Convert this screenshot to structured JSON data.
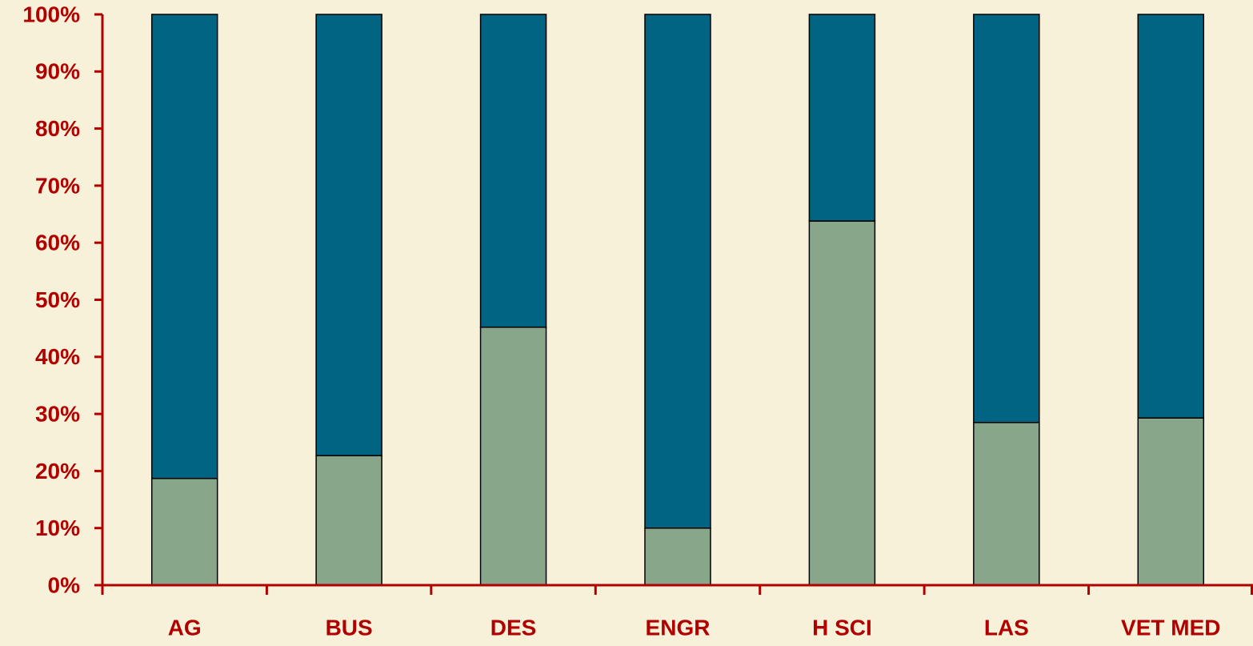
{
  "chart_data": {
    "type": "stacked_bar",
    "categories": [
      "AG",
      "BUS",
      "DES",
      "ENGR",
      "H SCI",
      "LAS",
      "VET MED"
    ],
    "series": [
      {
        "color": "#88a68a",
        "values": [
          18.7,
          22.7,
          45.2,
          10,
          63.8,
          28.5,
          29.3
        ]
      },
      {
        "color": "#006482",
        "values": [
          81.3,
          77.3,
          54.8,
          90,
          36.2,
          71.5,
          70.7
        ]
      }
    ],
    "ylim": [
      0,
      100
    ],
    "yticks": [
      {
        "value": 0,
        "label": "0%"
      },
      {
        "value": 10,
        "label": "10%"
      },
      {
        "value": 20,
        "label": "20%"
      },
      {
        "value": 30,
        "label": "30%"
      },
      {
        "value": 40,
        "label": "40%"
      },
      {
        "value": 50,
        "label": "50%"
      },
      {
        "value": 60,
        "label": "60%"
      },
      {
        "value": 70,
        "label": "70%"
      },
      {
        "value": 80,
        "label": "80%"
      },
      {
        "value": 90,
        "label": "90%"
      },
      {
        "value": 100,
        "label": "100%"
      }
    ],
    "axis_color": "#b00000",
    "background": "#f6f1d8",
    "grid": false
  }
}
